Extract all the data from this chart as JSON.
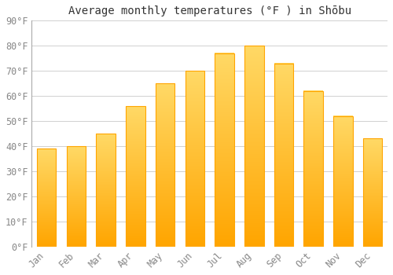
{
  "title": "Average monthly temperatures (°F ) in Shōbu",
  "months": [
    "Jan",
    "Feb",
    "Mar",
    "Apr",
    "May",
    "Jun",
    "Jul",
    "Aug",
    "Sep",
    "Oct",
    "Nov",
    "Dec"
  ],
  "values": [
    39,
    40,
    45,
    56,
    65,
    70,
    77,
    80,
    73,
    62,
    52,
    43
  ],
  "bar_color_bottom": "#FFA500",
  "bar_color_top": "#FFD966",
  "background_color": "#FFFFFF",
  "ylim": [
    0,
    90
  ],
  "yticks": [
    0,
    10,
    20,
    30,
    40,
    50,
    60,
    70,
    80,
    90
  ],
  "grid_color": "#d0d0d0",
  "title_fontsize": 10,
  "tick_fontsize": 8.5,
  "tick_color": "#888888",
  "bar_width": 0.65
}
